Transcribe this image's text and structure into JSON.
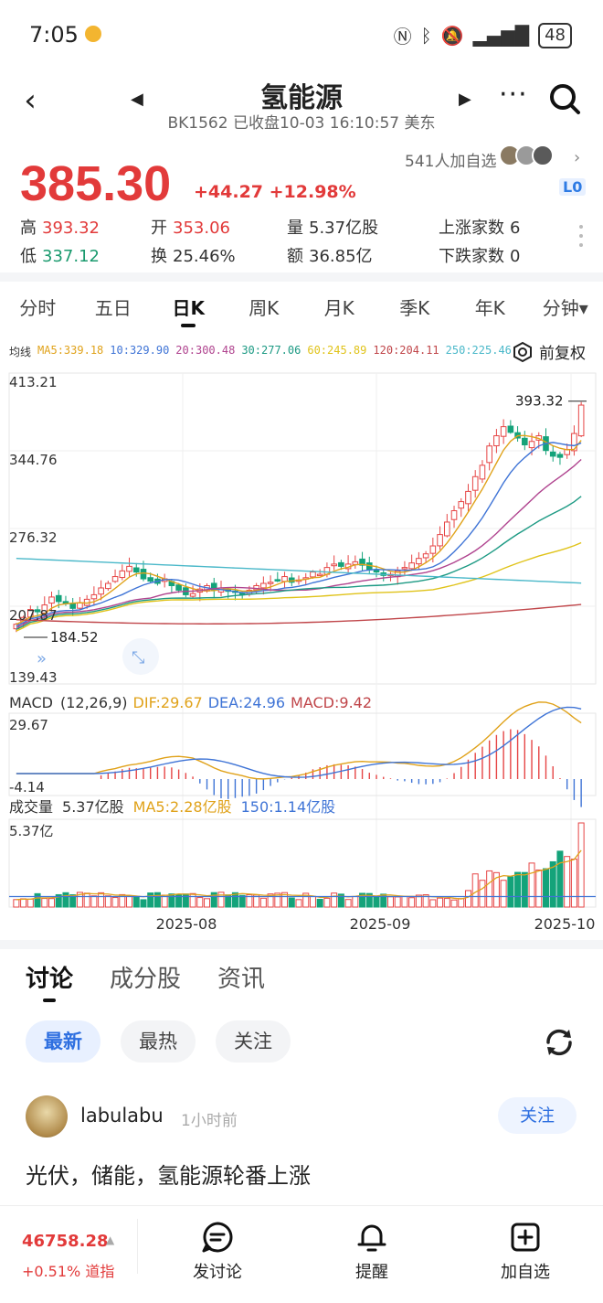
{
  "status_bar": {
    "time": "7:05",
    "battery": "48"
  },
  "header": {
    "title": "氢能源",
    "subtitle": "BK1562 已收盘10-03 16:10:57 美东",
    "more": "···"
  },
  "quote": {
    "price": "385.30",
    "change": "+44.27 +12.98%",
    "watchers": "541人加自选",
    "level_badge": "L0",
    "stats": [
      {
        "label": "高",
        "value": "393.32",
        "color": "red"
      },
      {
        "label": "开",
        "value": "353.06",
        "color": "red"
      },
      {
        "label": "量",
        "value": "5.37亿股",
        "color": "plain"
      },
      {
        "label": "上涨家数",
        "value": "6",
        "color": "plain"
      },
      {
        "label": "低",
        "value": "337.12",
        "color": "green"
      },
      {
        "label": "换",
        "value": "25.46%",
        "color": "plain"
      },
      {
        "label": "额",
        "value": "36.85亿",
        "color": "plain"
      },
      {
        "label": "下跌家数",
        "value": "0",
        "color": "plain"
      }
    ]
  },
  "chart_tabs": [
    "分时",
    "五日",
    "日K",
    "周K",
    "月K",
    "季K",
    "年K",
    "分钟▾"
  ],
  "active_chart_tab": "日K",
  "ma_legend": {
    "label": "均线",
    "items": [
      {
        "text": "MA5:339.18",
        "color": "#e0a21a"
      },
      {
        "text": "10:329.90",
        "color": "#3f74d6"
      },
      {
        "text": "20:300.48",
        "color": "#b0448f"
      },
      {
        "text": "30:277.06",
        "color": "#1d9a84"
      },
      {
        "text": "60:245.89",
        "color": "#e0c31a"
      },
      {
        "text": "120:204.11",
        "color": "#c0464a"
      },
      {
        "text": "250:225.46",
        "color": "#4ab8c9"
      }
    ],
    "adjust": "前复权"
  },
  "chart_data": [
    {
      "type": "candlestick",
      "y_ticks": [
        "413.21",
        "344.76",
        "276.32",
        "207.87",
        "139.43"
      ],
      "ylim": [
        139.43,
        413.21
      ],
      "high_label": "393.32",
      "low_label": "184.52",
      "x_ticks": [
        "2025-08",
        "2025-09",
        "2025-10"
      ],
      "closes": [
        192,
        198,
        205,
        203,
        209,
        216,
        212,
        210,
        206,
        211,
        214,
        218,
        224,
        228,
        234,
        239,
        243,
        238,
        232,
        230,
        228,
        232,
        226,
        222,
        218,
        219,
        223,
        226,
        222,
        224,
        221,
        220,
        219,
        222,
        226,
        228,
        229,
        231,
        234,
        229,
        231,
        233,
        238,
        236,
        242,
        245,
        243,
        245,
        247,
        244,
        240,
        238,
        235,
        236,
        239,
        242,
        246,
        250,
        254,
        261,
        271,
        282,
        292,
        300,
        309,
        322,
        332,
        349,
        358,
        366,
        361,
        356,
        350,
        353,
        358,
        345,
        340,
        339,
        346,
        360,
        385
      ],
      "ma_series": [
        {
          "name": "MA5",
          "color": "#e0a21a"
        },
        {
          "name": "10",
          "color": "#3f74d6"
        },
        {
          "name": "20",
          "color": "#b0448f"
        },
        {
          "name": "30",
          "color": "#1d9a84"
        },
        {
          "name": "60",
          "color": "#e0c31a"
        },
        {
          "name": "120",
          "color": "#c0464a"
        },
        {
          "name": "250",
          "color": "#4ab8c9"
        }
      ]
    },
    {
      "type": "bar",
      "title": "MACD",
      "params": "(12,26,9)",
      "dif": "DIF:29.67",
      "dea": "DEA:24.96",
      "macd": "MACD:9.42",
      "y_ticks": [
        "29.67",
        "-4.14"
      ],
      "ylim": [
        -4.14,
        29.67
      ]
    },
    {
      "type": "bar",
      "title": "成交量",
      "total": "5.37亿股",
      "ma5": "MA5:2.28亿股",
      "ma150": "150:1.14亿股",
      "y_ticks": [
        "5.37亿"
      ],
      "ylim": [
        0,
        5.37
      ]
    }
  ],
  "discussion": {
    "tabs": [
      "讨论",
      "成分股",
      "资讯"
    ],
    "filters": [
      "最新",
      "最热",
      "关注"
    ],
    "post": {
      "user": "labulabu",
      "time": "1小时前",
      "follow": "关注",
      "text": "光伏，储能，氢能源轮番上涨"
    }
  },
  "bottom_bar": {
    "index_value": "46758.28",
    "index_change": "+0.51% 道指",
    "buttons": [
      "发讨论",
      "提醒",
      "加自选"
    ]
  }
}
